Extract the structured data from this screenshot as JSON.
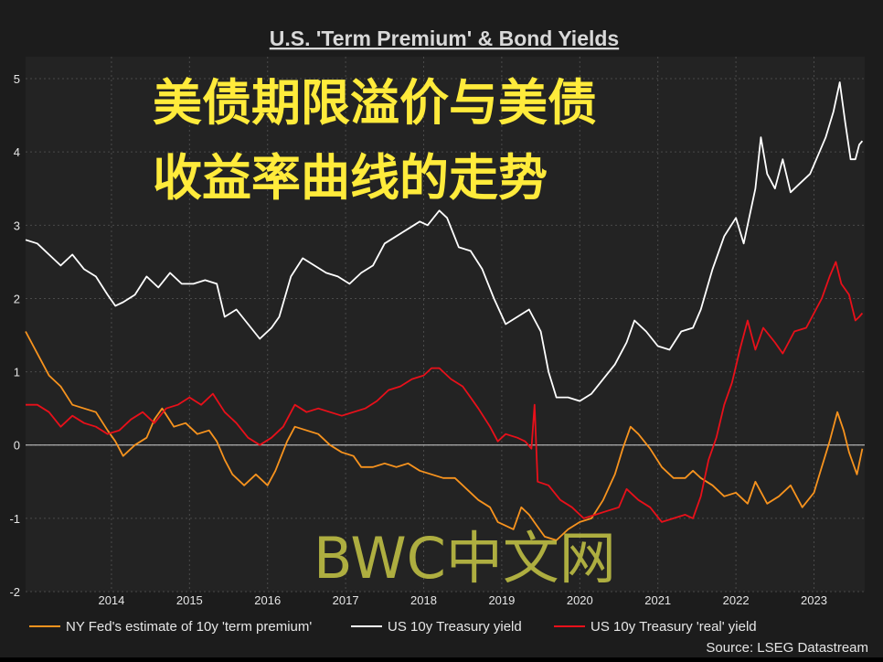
{
  "chart_data": {
    "type": "line",
    "title": "U.S. 'Term Premium' & Bond Yields",
    "overlay_title": [
      "美债期限溢价与美债",
      "收益率曲线的走势"
    ],
    "watermark": "BWC中文网",
    "source": "Source: LSEG Datastream",
    "xlabel": "",
    "ylabel": "",
    "xlim": [
      2013.4,
      2024.15
    ],
    "ylim": [
      -2,
      5.3
    ],
    "x_ticks": [
      "2014",
      "2015",
      "2016",
      "2017",
      "2018",
      "2019",
      "2020",
      "2021",
      "2022",
      "2023"
    ],
    "y_ticks": [
      "5",
      "4",
      "3",
      "2",
      "1",
      "0",
      "-1",
      "-2"
    ],
    "zero_line": true,
    "grid": true,
    "legend_position": "bottom",
    "colors": {
      "term_premium": "#f7931e",
      "yield_10y": "#ffffff",
      "real_yield": "#e8101a",
      "background": "#1c1c1c",
      "title_overlay": "#ffeb3b",
      "watermark": "#c2c244"
    },
    "series": [
      {
        "name": "NY Fed's estimate of 10y 'term premium'",
        "color": "#f7931e",
        "points": [
          [
            2013.4,
            1.55
          ],
          [
            2013.55,
            1.25
          ],
          [
            2013.7,
            0.95
          ],
          [
            2013.85,
            0.8
          ],
          [
            2014.0,
            0.55
          ],
          [
            2014.15,
            0.5
          ],
          [
            2014.3,
            0.45
          ],
          [
            2014.45,
            0.2
          ],
          [
            2014.55,
            0.05
          ],
          [
            2014.65,
            -0.15
          ],
          [
            2014.8,
            0.0
          ],
          [
            2014.95,
            0.1
          ],
          [
            2015.05,
            0.35
          ],
          [
            2015.15,
            0.5
          ],
          [
            2015.3,
            0.25
          ],
          [
            2015.45,
            0.3
          ],
          [
            2015.6,
            0.15
          ],
          [
            2015.75,
            0.2
          ],
          [
            2015.85,
            0.05
          ],
          [
            2015.95,
            -0.2
          ],
          [
            2016.05,
            -0.4
          ],
          [
            2016.2,
            -0.55
          ],
          [
            2016.35,
            -0.4
          ],
          [
            2016.5,
            -0.55
          ],
          [
            2016.6,
            -0.35
          ],
          [
            2016.75,
            0.05
          ],
          [
            2016.85,
            0.25
          ],
          [
            2017.0,
            0.2
          ],
          [
            2017.15,
            0.15
          ],
          [
            2017.3,
            0.0
          ],
          [
            2017.45,
            -0.1
          ],
          [
            2017.6,
            -0.15
          ],
          [
            2017.7,
            -0.3
          ],
          [
            2017.85,
            -0.3
          ],
          [
            2018.0,
            -0.25
          ],
          [
            2018.15,
            -0.3
          ],
          [
            2018.3,
            -0.25
          ],
          [
            2018.45,
            -0.35
          ],
          [
            2018.6,
            -0.4
          ],
          [
            2018.75,
            -0.45
          ],
          [
            2018.9,
            -0.45
          ],
          [
            2019.05,
            -0.6
          ],
          [
            2019.2,
            -0.75
          ],
          [
            2019.35,
            -0.85
          ],
          [
            2019.45,
            -1.05
          ],
          [
            2019.55,
            -1.1
          ],
          [
            2019.65,
            -1.15
          ],
          [
            2019.75,
            -0.85
          ],
          [
            2019.85,
            -0.95
          ],
          [
            2019.95,
            -1.1
          ],
          [
            2020.05,
            -1.25
          ],
          [
            2020.2,
            -1.3
          ],
          [
            2020.35,
            -1.15
          ],
          [
            2020.5,
            -1.05
          ],
          [
            2020.65,
            -1.0
          ],
          [
            2020.8,
            -0.75
          ],
          [
            2020.95,
            -0.4
          ],
          [
            2021.05,
            -0.05
          ],
          [
            2021.15,
            0.25
          ],
          [
            2021.25,
            0.15
          ],
          [
            2021.4,
            -0.05
          ],
          [
            2021.55,
            -0.3
          ],
          [
            2021.7,
            -0.45
          ],
          [
            2021.85,
            -0.45
          ],
          [
            2021.95,
            -0.35
          ],
          [
            2022.05,
            -0.45
          ],
          [
            2022.2,
            -0.55
          ],
          [
            2022.35,
            -0.7
          ],
          [
            2022.5,
            -0.65
          ],
          [
            2022.65,
            -0.8
          ],
          [
            2022.75,
            -0.5
          ],
          [
            2022.9,
            -0.8
          ],
          [
            2023.05,
            -0.7
          ],
          [
            2023.2,
            -0.55
          ],
          [
            2023.35,
            -0.85
          ],
          [
            2023.5,
            -0.65
          ],
          [
            2023.6,
            -0.3
          ],
          [
            2023.7,
            0.05
          ],
          [
            2023.8,
            0.45
          ],
          [
            2023.88,
            0.2
          ],
          [
            2023.95,
            -0.1
          ],
          [
            2024.05,
            -0.4
          ],
          [
            2024.1,
            -0.15
          ],
          [
            2024.12,
            -0.05
          ]
        ]
      },
      {
        "name": "US 10y Treasury yield",
        "color": "#ffffff",
        "points": [
          [
            2013.4,
            2.8
          ],
          [
            2013.55,
            2.75
          ],
          [
            2013.7,
            2.6
          ],
          [
            2013.85,
            2.45
          ],
          [
            2014.0,
            2.6
          ],
          [
            2014.15,
            2.4
          ],
          [
            2014.3,
            2.3
          ],
          [
            2014.45,
            2.05
          ],
          [
            2014.55,
            1.9
          ],
          [
            2014.65,
            1.95
          ],
          [
            2014.8,
            2.05
          ],
          [
            2014.95,
            2.3
          ],
          [
            2015.1,
            2.15
          ],
          [
            2015.25,
            2.35
          ],
          [
            2015.4,
            2.2
          ],
          [
            2015.55,
            2.2
          ],
          [
            2015.7,
            2.25
          ],
          [
            2015.85,
            2.2
          ],
          [
            2015.95,
            1.75
          ],
          [
            2016.1,
            1.85
          ],
          [
            2016.25,
            1.65
          ],
          [
            2016.4,
            1.45
          ],
          [
            2016.55,
            1.6
          ],
          [
            2016.65,
            1.75
          ],
          [
            2016.8,
            2.3
          ],
          [
            2016.95,
            2.55
          ],
          [
            2017.1,
            2.45
          ],
          [
            2017.25,
            2.35
          ],
          [
            2017.4,
            2.3
          ],
          [
            2017.55,
            2.2
          ],
          [
            2017.7,
            2.35
          ],
          [
            2017.85,
            2.45
          ],
          [
            2018.0,
            2.75
          ],
          [
            2018.15,
            2.85
          ],
          [
            2018.3,
            2.95
          ],
          [
            2018.45,
            3.05
          ],
          [
            2018.55,
            3.0
          ],
          [
            2018.7,
            3.2
          ],
          [
            2018.8,
            3.1
          ],
          [
            2018.95,
            2.7
          ],
          [
            2019.1,
            2.65
          ],
          [
            2019.25,
            2.4
          ],
          [
            2019.4,
            2.0
          ],
          [
            2019.55,
            1.65
          ],
          [
            2019.7,
            1.75
          ],
          [
            2019.85,
            1.85
          ],
          [
            2020.0,
            1.55
          ],
          [
            2020.1,
            1.0
          ],
          [
            2020.2,
            0.65
          ],
          [
            2020.35,
            0.65
          ],
          [
            2020.5,
            0.6
          ],
          [
            2020.65,
            0.7
          ],
          [
            2020.8,
            0.9
          ],
          [
            2020.95,
            1.1
          ],
          [
            2021.1,
            1.4
          ],
          [
            2021.2,
            1.7
          ],
          [
            2021.35,
            1.55
          ],
          [
            2021.5,
            1.35
          ],
          [
            2021.65,
            1.3
          ],
          [
            2021.8,
            1.55
          ],
          [
            2021.95,
            1.6
          ],
          [
            2022.05,
            1.85
          ],
          [
            2022.2,
            2.4
          ],
          [
            2022.35,
            2.85
          ],
          [
            2022.5,
            3.1
          ],
          [
            2022.6,
            2.75
          ],
          [
            2022.75,
            3.5
          ],
          [
            2022.82,
            4.2
          ],
          [
            2022.9,
            3.7
          ],
          [
            2023.0,
            3.5
          ],
          [
            2023.1,
            3.9
          ],
          [
            2023.2,
            3.45
          ],
          [
            2023.3,
            3.55
          ],
          [
            2023.45,
            3.7
          ],
          [
            2023.55,
            3.95
          ],
          [
            2023.65,
            4.2
          ],
          [
            2023.75,
            4.55
          ],
          [
            2023.83,
            4.95
          ],
          [
            2023.9,
            4.4
          ],
          [
            2023.97,
            3.9
          ],
          [
            2024.03,
            3.9
          ],
          [
            2024.08,
            4.1
          ],
          [
            2024.12,
            4.15
          ]
        ]
      },
      {
        "name": "US 10y Treasury 'real' yield",
        "color": "#e8101a",
        "points": [
          [
            2013.4,
            0.55
          ],
          [
            2013.55,
            0.55
          ],
          [
            2013.7,
            0.45
          ],
          [
            2013.85,
            0.25
          ],
          [
            2014.0,
            0.4
          ],
          [
            2014.15,
            0.3
          ],
          [
            2014.3,
            0.25
          ],
          [
            2014.45,
            0.15
          ],
          [
            2014.6,
            0.2
          ],
          [
            2014.75,
            0.35
          ],
          [
            2014.9,
            0.45
          ],
          [
            2015.05,
            0.3
          ],
          [
            2015.2,
            0.5
          ],
          [
            2015.35,
            0.55
          ],
          [
            2015.5,
            0.65
          ],
          [
            2015.65,
            0.55
          ],
          [
            2015.8,
            0.7
          ],
          [
            2015.95,
            0.45
          ],
          [
            2016.1,
            0.3
          ],
          [
            2016.25,
            0.1
          ],
          [
            2016.4,
            0.0
          ],
          [
            2016.55,
            0.1
          ],
          [
            2016.7,
            0.25
          ],
          [
            2016.85,
            0.55
          ],
          [
            2017.0,
            0.45
          ],
          [
            2017.15,
            0.5
          ],
          [
            2017.3,
            0.45
          ],
          [
            2017.45,
            0.4
          ],
          [
            2017.6,
            0.45
          ],
          [
            2017.75,
            0.5
          ],
          [
            2017.9,
            0.6
          ],
          [
            2018.05,
            0.75
          ],
          [
            2018.2,
            0.8
          ],
          [
            2018.35,
            0.9
          ],
          [
            2018.5,
            0.95
          ],
          [
            2018.6,
            1.05
          ],
          [
            2018.7,
            1.05
          ],
          [
            2018.85,
            0.9
          ],
          [
            2019.0,
            0.8
          ],
          [
            2019.1,
            0.65
          ],
          [
            2019.2,
            0.5
          ],
          [
            2019.35,
            0.25
          ],
          [
            2019.45,
            0.05
          ],
          [
            2019.55,
            0.15
          ],
          [
            2019.7,
            0.1
          ],
          [
            2019.8,
            0.05
          ],
          [
            2019.88,
            -0.05
          ],
          [
            2019.92,
            0.55
          ],
          [
            2019.96,
            -0.5
          ],
          [
            2020.1,
            -0.55
          ],
          [
            2020.25,
            -0.75
          ],
          [
            2020.4,
            -0.85
          ],
          [
            2020.55,
            -1.0
          ],
          [
            2020.7,
            -0.95
          ],
          [
            2020.85,
            -0.9
          ],
          [
            2021.0,
            -0.85
          ],
          [
            2021.1,
            -0.6
          ],
          [
            2021.25,
            -0.75
          ],
          [
            2021.4,
            -0.85
          ],
          [
            2021.55,
            -1.05
          ],
          [
            2021.7,
            -1.0
          ],
          [
            2021.85,
            -0.95
          ],
          [
            2021.95,
            -1.0
          ],
          [
            2022.05,
            -0.7
          ],
          [
            2022.15,
            -0.2
          ],
          [
            2022.25,
            0.1
          ],
          [
            2022.35,
            0.55
          ],
          [
            2022.45,
            0.85
          ],
          [
            2022.55,
            1.3
          ],
          [
            2022.65,
            1.7
          ],
          [
            2022.75,
            1.3
          ],
          [
            2022.85,
            1.6
          ],
          [
            2023.0,
            1.4
          ],
          [
            2023.1,
            1.25
          ],
          [
            2023.25,
            1.55
          ],
          [
            2023.4,
            1.6
          ],
          [
            2023.5,
            1.8
          ],
          [
            2023.6,
            2.0
          ],
          [
            2023.7,
            2.3
          ],
          [
            2023.78,
            2.5
          ],
          [
            2023.85,
            2.2
          ],
          [
            2023.95,
            2.05
          ],
          [
            2024.03,
            1.7
          ],
          [
            2024.08,
            1.75
          ],
          [
            2024.12,
            1.8
          ]
        ]
      }
    ]
  }
}
